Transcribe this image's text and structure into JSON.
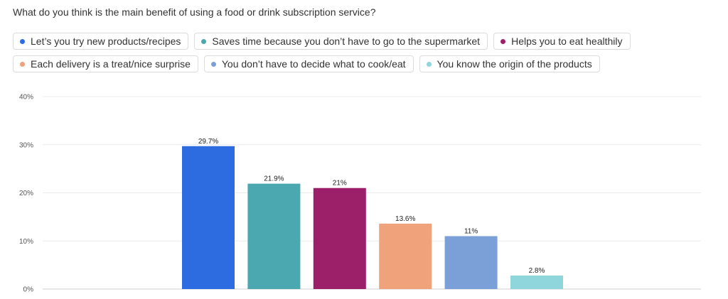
{
  "question": "What do you think is the main benefit of using a food or drink subscription service?",
  "chart_data": {
    "type": "bar",
    "title": "",
    "xlabel": "",
    "ylabel": "",
    "ylim": [
      0,
      40
    ],
    "y_ticks": [
      "0%",
      "10%",
      "20%",
      "30%",
      "40%"
    ],
    "y_tick_values": [
      0,
      10,
      20,
      30,
      40
    ],
    "grid": true,
    "legend_position": "top",
    "categories": [
      "Let’s you try new products/recipes",
      "Saves time because you don’t have to go to the supermarket",
      "Helps you to eat healthily",
      "Each delivery is a treat/nice surprise",
      "You don’t have to decide what to cook/eat",
      "You know the origin of the products"
    ],
    "values": [
      29.7,
      21.9,
      21,
      13.6,
      11,
      2.8
    ],
    "value_labels": [
      "29.7%",
      "21.9%",
      "21%",
      "13.6%",
      "11%",
      "2.8%"
    ],
    "colors": [
      "#2d6be0",
      "#4ba7b0",
      "#9c1f6a",
      "#f0a27b",
      "#7ba0d8",
      "#8fd5dc"
    ]
  }
}
